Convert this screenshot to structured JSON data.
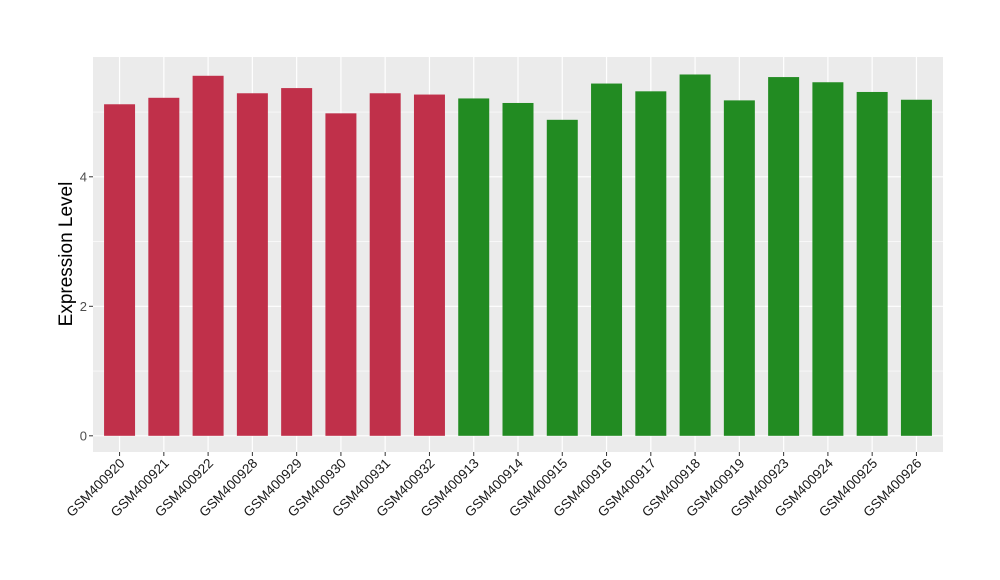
{
  "chart_data": {
    "type": "bar",
    "title": "",
    "xlabel": "",
    "ylabel": "Expression Level",
    "ylim": [
      -0.25,
      5.85
    ],
    "yticks": [
      0,
      2,
      4
    ],
    "grid": true,
    "legend": "none",
    "categories": [
      "GSM400920",
      "GSM400921",
      "GSM400922",
      "GSM400928",
      "GSM400929",
      "GSM400930",
      "GSM400931",
      "GSM400932",
      "GSM400913",
      "GSM400914",
      "GSM400915",
      "GSM400916",
      "GSM400917",
      "GSM400918",
      "GSM400919",
      "GSM400923",
      "GSM400924",
      "GSM400925",
      "GSM400926"
    ],
    "values": [
      5.12,
      5.22,
      5.56,
      5.29,
      5.37,
      4.98,
      5.29,
      5.27,
      5.21,
      5.14,
      4.88,
      5.44,
      5.32,
      5.58,
      5.18,
      5.54,
      5.46,
      5.31,
      5.19
    ],
    "bar_colors": [
      "#C0304A",
      "#C0304A",
      "#C0304A",
      "#C0304A",
      "#C0304A",
      "#C0304A",
      "#C0304A",
      "#C0304A",
      "#228B22",
      "#228B22",
      "#228B22",
      "#228B22",
      "#228B22",
      "#228B22",
      "#228B22",
      "#228B22",
      "#228B22",
      "#228B22",
      "#228B22"
    ],
    "panel_background": "#EBEBEB",
    "grid_color": "#FFFFFF"
  }
}
